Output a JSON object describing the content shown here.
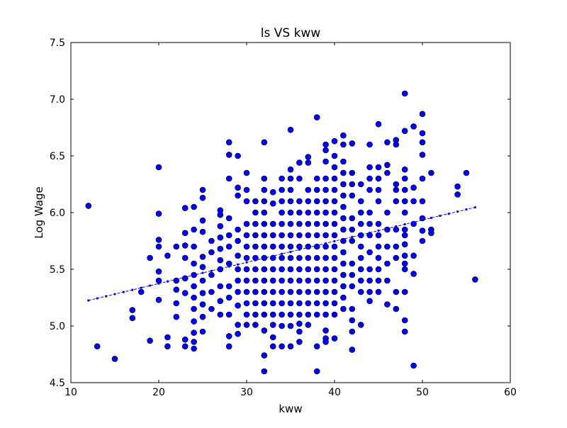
{
  "chart_data": {
    "type": "scatter",
    "title": "ls VS kww",
    "xlabel": "kww",
    "ylabel": "Log Wage",
    "xlim": [
      10,
      60
    ],
    "ylim": [
      4.5,
      7.5
    ],
    "xticks": [
      10,
      20,
      30,
      40,
      50,
      60
    ],
    "yticks": [
      4.5,
      5.0,
      5.5,
      6.0,
      6.5,
      7.0,
      7.5
    ],
    "xtick_labels": [
      "10",
      "20",
      "30",
      "40",
      "50",
      "60"
    ],
    "ytick_labels": [
      "4.5",
      "5.0",
      "5.5",
      "6.0",
      "6.5",
      "7.0",
      "7.5"
    ],
    "grid": false,
    "legend": "none",
    "marker_color": "#0000ff",
    "marker_edge_color": "#000000",
    "line_color": "#0000ff",
    "points": [
      [
        12,
        6.06
      ],
      [
        13,
        4.82
      ],
      [
        15,
        4.71
      ],
      [
        17,
        5.14
      ],
      [
        17,
        5.07
      ],
      [
        18,
        5.3
      ],
      [
        19,
        5.6
      ],
      [
        19,
        4.87
      ],
      [
        20,
        6.4
      ],
      [
        20,
        5.99
      ],
      [
        20,
        5.76
      ],
      [
        20,
        5.7
      ],
      [
        20,
        5.48
      ],
      [
        20,
        5.4
      ],
      [
        20,
        5.23
      ],
      [
        21,
        5.62
      ],
      [
        21,
        4.9
      ],
      [
        21,
        4.82
      ],
      [
        22,
        5.7
      ],
      [
        22,
        5.4
      ],
      [
        22,
        5.32
      ],
      [
        22,
        5.2
      ],
      [
        22,
        5.08
      ],
      [
        23,
        6.04
      ],
      [
        23,
        5.82
      ],
      [
        23,
        5.71
      ],
      [
        23,
        5.6
      ],
      [
        23,
        5.42
      ],
      [
        23,
        5.29
      ],
      [
        23,
        4.88
      ],
      [
        23,
        4.82
      ],
      [
        24,
        6.05
      ],
      [
        24,
        5.85
      ],
      [
        24,
        5.7
      ],
      [
        24,
        5.55
      ],
      [
        24,
        5.45
      ],
      [
        24,
        5.35
      ],
      [
        24,
        5.25
      ],
      [
        24,
        5.15
      ],
      [
        24,
        5.04
      ],
      [
        24,
        4.94
      ],
      [
        24,
        4.86
      ],
      [
        24,
        4.8
      ],
      [
        25,
        6.2
      ],
      [
        25,
        6.13
      ],
      [
        25,
        5.93
      ],
      [
        25,
        5.83
      ],
      [
        25,
        5.61
      ],
      [
        25,
        5.52
      ],
      [
        25,
        5.4
      ],
      [
        25,
        5.29
      ],
      [
        25,
        5.19
      ],
      [
        25,
        5.08
      ],
      [
        25,
        4.95
      ],
      [
        26,
        5.75
      ],
      [
        26,
        5.65
      ],
      [
        26,
        5.45
      ],
      [
        26,
        5.3
      ],
      [
        26,
        5.15
      ],
      [
        27,
        6.02
      ],
      [
        27,
        5.98
      ],
      [
        27,
        5.88
      ],
      [
        27,
        5.78
      ],
      [
        27,
        5.68
      ],
      [
        27,
        5.58
      ],
      [
        27,
        5.5
      ],
      [
        27,
        5.35
      ],
      [
        27,
        5.22
      ],
      [
        27,
        5.1
      ],
      [
        28,
        6.62
      ],
      [
        28,
        6.51
      ],
      [
        28,
        6.3
      ],
      [
        28,
        5.95
      ],
      [
        28,
        5.8
      ],
      [
        28,
        5.7
      ],
      [
        28,
        5.55
      ],
      [
        28,
        5.35
      ],
      [
        28,
        5.25
      ],
      [
        28,
        5.1
      ],
      [
        28,
        4.91
      ],
      [
        28,
        4.82
      ],
      [
        29,
        6.5
      ],
      [
        29,
        6.22
      ],
      [
        29,
        6.15
      ],
      [
        29,
        5.85
      ],
      [
        29,
        5.75
      ],
      [
        29,
        5.62
      ],
      [
        29,
        5.5
      ],
      [
        29,
        5.4
      ],
      [
        29,
        5.3
      ],
      [
        29,
        5.18
      ],
      [
        29,
        5.01
      ],
      [
        29,
        4.93
      ],
      [
        30,
        6.35
      ],
      [
        30,
        6.2
      ],
      [
        30,
        6.1
      ],
      [
        30,
        5.9
      ],
      [
        30,
        5.8
      ],
      [
        30,
        5.7
      ],
      [
        30,
        5.6
      ],
      [
        30,
        5.5
      ],
      [
        30,
        5.4
      ],
      [
        30,
        5.3
      ],
      [
        30,
        5.2
      ],
      [
        30,
        5.1
      ],
      [
        30,
        5.01
      ],
      [
        31,
        6.1
      ],
      [
        31,
        6.0
      ],
      [
        31,
        5.9
      ],
      [
        31,
        5.8
      ],
      [
        31,
        5.7
      ],
      [
        31,
        5.6
      ],
      [
        31,
        5.5
      ],
      [
        31,
        5.4
      ],
      [
        31,
        5.3
      ],
      [
        31,
        5.2
      ],
      [
        31,
        5.1
      ],
      [
        31,
        5.01
      ],
      [
        32,
        6.62
      ],
      [
        32,
        6.3
      ],
      [
        32,
        6.2
      ],
      [
        32,
        6.1
      ],
      [
        32,
        6.0
      ],
      [
        32,
        5.9
      ],
      [
        32,
        5.8
      ],
      [
        32,
        5.7
      ],
      [
        32,
        5.6
      ],
      [
        32,
        5.5
      ],
      [
        32,
        5.4
      ],
      [
        32,
        5.3
      ],
      [
        32,
        5.2
      ],
      [
        32,
        5.1
      ],
      [
        32,
        4.96
      ],
      [
        32,
        4.74
      ],
      [
        32,
        4.6
      ],
      [
        33,
        6.18
      ],
      [
        33,
        6.08
      ],
      [
        33,
        5.9
      ],
      [
        33,
        5.8
      ],
      [
        33,
        5.7
      ],
      [
        33,
        5.6
      ],
      [
        33,
        5.5
      ],
      [
        33,
        5.4
      ],
      [
        33,
        5.3
      ],
      [
        33,
        5.2
      ],
      [
        33,
        5.1
      ],
      [
        33,
        5.01
      ],
      [
        33,
        4.9
      ],
      [
        33,
        4.82
      ],
      [
        34,
        6.3
      ],
      [
        34,
        6.2
      ],
      [
        34,
        6.1
      ],
      [
        34,
        6.0
      ],
      [
        34,
        5.9
      ],
      [
        34,
        5.8
      ],
      [
        34,
        5.7
      ],
      [
        34,
        5.6
      ],
      [
        34,
        5.5
      ],
      [
        34,
        5.4
      ],
      [
        34,
        5.3
      ],
      [
        34,
        5.2
      ],
      [
        34,
        5.1
      ],
      [
        34,
        5.0
      ],
      [
        34,
        4.82
      ],
      [
        35,
        6.73
      ],
      [
        35,
        6.38
      ],
      [
        35,
        6.3
      ],
      [
        35,
        6.2
      ],
      [
        35,
        6.1
      ],
      [
        35,
        6.0
      ],
      [
        35,
        5.9
      ],
      [
        35,
        5.8
      ],
      [
        35,
        5.7
      ],
      [
        35,
        5.6
      ],
      [
        35,
        5.5
      ],
      [
        35,
        5.4
      ],
      [
        35,
        5.3
      ],
      [
        35,
        5.2
      ],
      [
        35,
        5.1
      ],
      [
        35,
        5.0
      ],
      [
        35,
        4.82
      ],
      [
        36,
        6.44
      ],
      [
        36,
        6.3
      ],
      [
        36,
        6.1
      ],
      [
        36,
        6.0
      ],
      [
        36,
        5.9
      ],
      [
        36,
        5.8
      ],
      [
        36,
        5.7
      ],
      [
        36,
        5.6
      ],
      [
        36,
        5.5
      ],
      [
        36,
        5.4
      ],
      [
        36,
        5.3
      ],
      [
        36,
        5.2
      ],
      [
        36,
        5.1
      ],
      [
        36,
        5.02
      ],
      [
        36,
        4.95
      ],
      [
        36,
        4.86
      ],
      [
        37,
        6.49
      ],
      [
        37,
        6.44
      ],
      [
        37,
        6.2
      ],
      [
        37,
        6.1
      ],
      [
        37,
        6.0
      ],
      [
        37,
        5.9
      ],
      [
        37,
        5.8
      ],
      [
        37,
        5.7
      ],
      [
        37,
        5.6
      ],
      [
        37,
        5.5
      ],
      [
        37,
        5.4
      ],
      [
        37,
        5.3
      ],
      [
        37,
        5.2
      ],
      [
        37,
        5.1
      ],
      [
        37,
        5.01
      ],
      [
        38,
        6.84
      ],
      [
        38,
        6.3
      ],
      [
        38,
        6.2
      ],
      [
        38,
        6.1
      ],
      [
        38,
        6.0
      ],
      [
        38,
        5.9
      ],
      [
        38,
        5.8
      ],
      [
        38,
        5.7
      ],
      [
        38,
        5.6
      ],
      [
        38,
        5.5
      ],
      [
        38,
        5.4
      ],
      [
        38,
        5.3
      ],
      [
        38,
        5.2
      ],
      [
        38,
        5.1
      ],
      [
        38,
        4.82
      ],
      [
        38,
        4.6
      ],
      [
        39,
        6.6
      ],
      [
        39,
        6.55
      ],
      [
        39,
        6.45
      ],
      [
        39,
        6.3
      ],
      [
        39,
        6.2
      ],
      [
        39,
        6.1
      ],
      [
        39,
        6.0
      ],
      [
        39,
        5.9
      ],
      [
        39,
        5.8
      ],
      [
        39,
        5.7
      ],
      [
        39,
        5.6
      ],
      [
        39,
        5.5
      ],
      [
        39,
        5.4
      ],
      [
        39,
        5.3
      ],
      [
        39,
        5.2
      ],
      [
        39,
        5.1
      ],
      [
        39,
        4.96
      ],
      [
        39,
        4.89
      ],
      [
        39,
        4.86
      ],
      [
        40,
        6.63
      ],
      [
        40,
        6.5
      ],
      [
        40,
        6.4
      ],
      [
        40,
        6.3
      ],
      [
        40,
        6.2
      ],
      [
        40,
        6.1
      ],
      [
        40,
        6.0
      ],
      [
        40,
        5.9
      ],
      [
        40,
        5.8
      ],
      [
        40,
        5.7
      ],
      [
        40,
        5.6
      ],
      [
        40,
        5.5
      ],
      [
        40,
        5.4
      ],
      [
        40,
        5.3
      ],
      [
        40,
        5.2
      ],
      [
        40,
        5.1
      ],
      [
        40,
        4.89
      ],
      [
        41,
        6.68
      ],
      [
        41,
        6.6
      ],
      [
        41,
        6.45
      ],
      [
        41,
        6.35
      ],
      [
        41,
        6.25
      ],
      [
        41,
        6.15
      ],
      [
        41,
        6.05
      ],
      [
        41,
        5.95
      ],
      [
        41,
        5.85
      ],
      [
        41,
        5.75
      ],
      [
        41,
        5.65
      ],
      [
        41,
        5.55
      ],
      [
        41,
        5.45
      ],
      [
        41,
        5.35
      ],
      [
        41,
        5.25
      ],
      [
        41,
        5.15
      ],
      [
        42,
        6.61
      ],
      [
        42,
        6.35
      ],
      [
        42,
        6.25
      ],
      [
        42,
        6.15
      ],
      [
        42,
        5.95
      ],
      [
        42,
        5.85
      ],
      [
        42,
        5.75
      ],
      [
        42,
        5.55
      ],
      [
        42,
        5.45
      ],
      [
        42,
        5.35
      ],
      [
        42,
        5.15
      ],
      [
        42,
        5.05
      ],
      [
        42,
        4.95
      ],
      [
        42,
        4.79
      ],
      [
        43,
        6.25
      ],
      [
        43,
        6.1
      ],
      [
        43,
        6.0
      ],
      [
        43,
        5.9
      ],
      [
        43,
        5.8
      ],
      [
        43,
        5.7
      ],
      [
        43,
        5.6
      ],
      [
        43,
        5.5
      ],
      [
        43,
        5.4
      ],
      [
        43,
        5.3
      ],
      [
        43,
        5.01
      ],
      [
        44,
        6.6
      ],
      [
        44,
        6.4
      ],
      [
        44,
        6.3
      ],
      [
        44,
        6.2
      ],
      [
        44,
        6.0
      ],
      [
        44,
        5.9
      ],
      [
        44,
        5.8
      ],
      [
        44,
        5.65
      ],
      [
        44,
        5.5
      ],
      [
        44,
        5.4
      ],
      [
        44,
        5.3
      ],
      [
        44,
        5.22
      ],
      [
        45,
        6.78
      ],
      [
        45,
        6.4
      ],
      [
        45,
        6.3
      ],
      [
        45,
        6.2
      ],
      [
        45,
        6.1
      ],
      [
        45,
        5.9
      ],
      [
        45,
        5.8
      ],
      [
        45,
        5.7
      ],
      [
        45,
        5.6
      ],
      [
        45,
        5.5
      ],
      [
        45,
        5.4
      ],
      [
        45,
        5.3
      ],
      [
        46,
        6.62
      ],
      [
        46,
        6.42
      ],
      [
        46,
        6.35
      ],
      [
        46,
        6.0
      ],
      [
        46,
        5.85
      ],
      [
        46,
        5.7
      ],
      [
        46,
        5.55
      ],
      [
        46,
        5.4
      ],
      [
        46,
        5.19
      ],
      [
        47,
        6.64
      ],
      [
        47,
        6.6
      ],
      [
        47,
        6.25
      ],
      [
        47,
        6.2
      ],
      [
        47,
        6.1
      ],
      [
        47,
        5.85
      ],
      [
        47,
        5.7
      ],
      [
        47,
        5.6
      ],
      [
        47,
        5.3
      ],
      [
        47,
        5.15
      ],
      [
        48,
        7.05
      ],
      [
        48,
        6.72
      ],
      [
        48,
        6.38
      ],
      [
        48,
        6.3
      ],
      [
        48,
        6.2
      ],
      [
        48,
        6.1
      ],
      [
        48,
        6.0
      ],
      [
        48,
        5.85
      ],
      [
        48,
        5.8
      ],
      [
        48,
        5.72
      ],
      [
        48,
        5.62
      ],
      [
        48,
        5.55
      ],
      [
        48,
        5.5
      ],
      [
        48,
        5.3
      ],
      [
        48,
        5.05
      ],
      [
        48,
        4.95
      ],
      [
        49,
        6.76
      ],
      [
        49,
        6.22
      ],
      [
        49,
        6.1
      ],
      [
        49,
        5.9
      ],
      [
        49,
        5.62
      ],
      [
        49,
        5.46
      ],
      [
        49,
        4.65
      ],
      [
        50,
        6.87
      ],
      [
        50,
        6.7
      ],
      [
        50,
        6.62
      ],
      [
        50,
        6.51
      ],
      [
        50,
        6.3
      ],
      [
        50,
        6.1
      ],
      [
        50,
        5.95
      ],
      [
        50,
        5.84
      ],
      [
        50,
        5.75
      ],
      [
        51,
        6.35
      ],
      [
        51,
        5.85
      ],
      [
        51,
        5.82
      ],
      [
        54,
        6.23
      ],
      [
        54,
        6.16
      ],
      [
        55,
        6.35
      ],
      [
        56,
        5.41
      ]
    ],
    "fit_line": {
      "x": [
        12,
        13,
        14,
        15,
        16,
        17,
        18,
        19,
        20,
        21,
        22,
        23,
        24,
        25,
        26,
        27,
        28,
        29,
        30,
        31,
        32,
        33,
        34,
        35,
        36,
        37,
        38,
        39,
        40,
        41,
        42,
        43,
        44,
        45,
        46,
        47,
        48,
        49,
        50,
        51,
        52,
        53,
        54,
        55,
        56
      ],
      "y": [
        5.225,
        5.244,
        5.262,
        5.281,
        5.3,
        5.318,
        5.337,
        5.356,
        5.374,
        5.393,
        5.412,
        5.43,
        5.449,
        5.468,
        5.486,
        5.505,
        5.524,
        5.542,
        5.561,
        5.58,
        5.598,
        5.617,
        5.636,
        5.654,
        5.673,
        5.692,
        5.71,
        5.729,
        5.748,
        5.766,
        5.785,
        5.804,
        5.822,
        5.841,
        5.86,
        5.878,
        5.897,
        5.916,
        5.934,
        5.953,
        5.972,
        5.99,
        6.009,
        6.028,
        6.046
      ]
    }
  }
}
